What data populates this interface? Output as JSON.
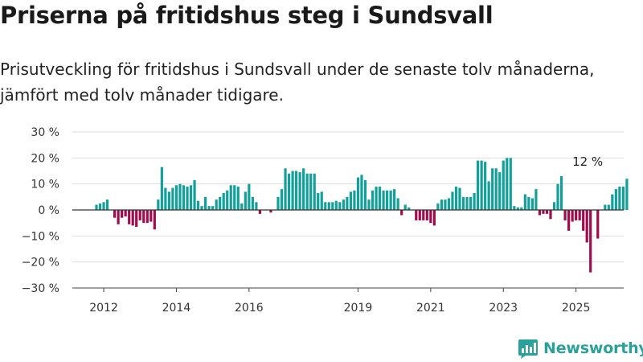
{
  "title": "Priserna på fritidshus steg i Sundsvall",
  "subtitle": "Prisutveckling för fritidshus i Sundsvall under de senaste tolv månaderna, jämfört med tolv månader tidigare.",
  "brand": {
    "name": "Newsworthy",
    "logo_icon": "bar-chart-logo-icon"
  },
  "chart_data": {
    "type": "bar",
    "y_unit": "%",
    "ylim": [
      -30,
      30
    ],
    "y_ticks": [
      30,
      20,
      10,
      0,
      -10,
      -20,
      -30
    ],
    "y_tick_labels": [
      "30 %",
      "20 %",
      "10 %",
      "0 %",
      "−10 %",
      "−20 %",
      "−30 %"
    ],
    "x_tick_labels": [
      "2012",
      "2014",
      "2016",
      "2019",
      "2021",
      "2023",
      "2025"
    ],
    "x_tick_indices": [
      2,
      22,
      42,
      72,
      92,
      112,
      132
    ],
    "colors": {
      "positive": "#14a09a",
      "negative": "#9e0d4d"
    },
    "annotation": {
      "text": "12 %",
      "index": 135
    },
    "grid": true,
    "values": [
      2,
      2.5,
      3,
      4,
      0,
      -3,
      -5.5,
      -3,
      -2.5,
      -5.5,
      -6,
      -6.5,
      -4,
      -5,
      -5,
      -4.5,
      -7.5,
      4,
      16.5,
      8.5,
      7,
      8.5,
      9.5,
      10,
      9.5,
      9,
      9.5,
      11.5,
      3.5,
      1.5,
      5,
      1.5,
      1.5,
      4,
      5,
      6.5,
      7.5,
      9.5,
      9.5,
      9,
      2.5,
      7,
      10,
      5,
      3,
      -1.5,
      0,
      0,
      -1,
      0,
      5,
      8,
      16,
      14,
      15,
      15,
      14.5,
      16,
      14,
      14,
      14,
      6.5,
      7,
      3,
      3,
      3,
      3.5,
      3,
      4,
      5,
      7,
      7.5,
      12.5,
      13.5,
      11.5,
      4,
      7.5,
      9,
      9,
      7.5,
      7.5,
      7.5,
      8,
      4.5,
      -2,
      2,
      1,
      0,
      -4,
      -4,
      -4,
      -4,
      -5,
      -6,
      2.5,
      4,
      4,
      4.5,
      7,
      9,
      8.5,
      5,
      5,
      5,
      6.5,
      19,
      19,
      18.5,
      11,
      16,
      16,
      14.5,
      19,
      20,
      20,
      1.5,
      1,
      1,
      6,
      5,
      4.5,
      8,
      -2,
      -1.5,
      -1.5,
      -3.5,
      3,
      10,
      13,
      -4,
      -8,
      -4.5,
      -4,
      -4,
      -8,
      -12.5,
      -24,
      0,
      -11,
      0,
      2,
      2,
      6,
      8,
      9,
      9,
      12
    ]
  }
}
